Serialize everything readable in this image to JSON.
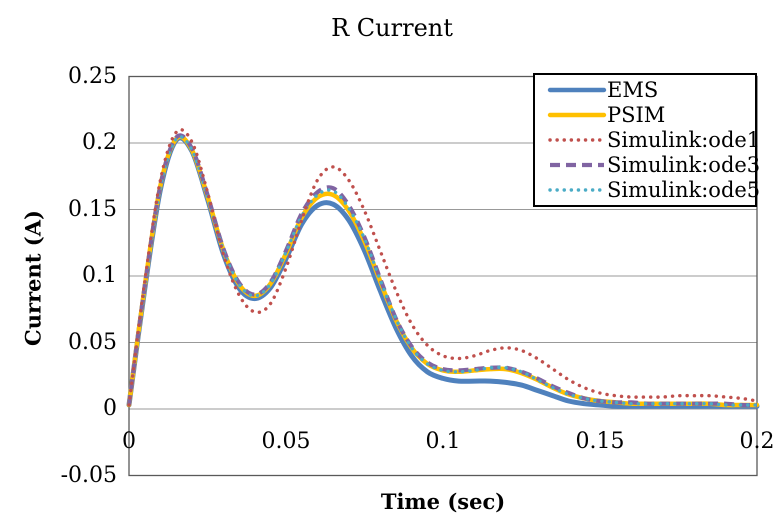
{
  "chart": {
    "title": "R Current",
    "x_axis_title": "Time (sec)",
    "y_axis_title": "Current (A)"
  },
  "colors": {
    "ems_blue": "#4F81BD",
    "psim_yellow": "#FFC000",
    "ode1_red": "#C0504D",
    "ode3_purple": "#8064A2",
    "ode5_cyan": "#4BACC6",
    "gridline": "#999999",
    "plot_border": "#595959",
    "legend_border": "#000000",
    "text": "#000000"
  },
  "chart_data": {
    "type": "line",
    "title": "R Current",
    "xlabel": "Time (sec)",
    "ylabel": "Current (A)",
    "xlim": [
      0,
      0.2
    ],
    "ylim": [
      -0.05,
      0.25
    ],
    "xticks": [
      "0",
      "0.05",
      "0.1",
      "0.15",
      "0.2"
    ],
    "xtick_values": [
      0,
      0.05,
      0.1,
      0.15,
      0.2
    ],
    "yticks": [
      "0.25",
      "0.2",
      "0.15",
      "0.1",
      "0.05",
      "0",
      "-0.05"
    ],
    "ytick_values": [
      0.25,
      0.2,
      0.15,
      0.1,
      0.05,
      0,
      -0.05
    ],
    "grid": true,
    "legend_position": "top-right",
    "x": [
      0,
      0.005,
      0.01,
      0.015,
      0.02,
      0.025,
      0.03,
      0.035,
      0.04,
      0.045,
      0.05,
      0.055,
      0.06,
      0.065,
      0.07,
      0.075,
      0.08,
      0.085,
      0.09,
      0.095,
      0.1,
      0.105,
      0.11,
      0.115,
      0.12,
      0.125,
      0.13,
      0.135,
      0.14,
      0.145,
      0.15,
      0.155,
      0.16,
      0.165,
      0.17,
      0.175,
      0.18,
      0.185,
      0.19,
      0.195,
      0.2
    ],
    "series": [
      {
        "name": "EMS",
        "color": "#4F81BD",
        "style": "solid",
        "width": 5,
        "values": [
          0.003,
          0.09,
          0.165,
          0.202,
          0.194,
          0.158,
          0.117,
          0.091,
          0.083,
          0.091,
          0.113,
          0.139,
          0.153,
          0.154,
          0.142,
          0.119,
          0.089,
          0.061,
          0.04,
          0.028,
          0.023,
          0.021,
          0.021,
          0.021,
          0.02,
          0.018,
          0.014,
          0.01,
          0.006,
          0.004,
          0.003,
          0.002,
          0.002,
          0.002,
          0.002,
          0.002,
          0.002,
          0.002,
          0.002,
          0.002,
          0.002
        ]
      },
      {
        "name": "PSIM",
        "color": "#FFC000",
        "style": "solid",
        "width": 4.5,
        "values": [
          0.003,
          0.092,
          0.168,
          0.203,
          0.195,
          0.16,
          0.12,
          0.094,
          0.085,
          0.094,
          0.117,
          0.144,
          0.159,
          0.161,
          0.149,
          0.126,
          0.096,
          0.067,
          0.046,
          0.034,
          0.029,
          0.028,
          0.029,
          0.03,
          0.03,
          0.027,
          0.022,
          0.016,
          0.011,
          0.008,
          0.006,
          0.005,
          0.004,
          0.004,
          0.004,
          0.004,
          0.004,
          0.004,
          0.003,
          0.003,
          0.003
        ]
      },
      {
        "name": "Simulink:ode1",
        "color": "#C0504D",
        "style": "dotted",
        "width": 3.4,
        "values": [
          0.003,
          0.095,
          0.172,
          0.208,
          0.201,
          0.163,
          0.117,
          0.086,
          0.073,
          0.079,
          0.106,
          0.142,
          0.172,
          0.182,
          0.172,
          0.149,
          0.119,
          0.089,
          0.064,
          0.048,
          0.04,
          0.038,
          0.04,
          0.044,
          0.046,
          0.044,
          0.038,
          0.03,
          0.022,
          0.016,
          0.012,
          0.01,
          0.009,
          0.009,
          0.009,
          0.01,
          0.01,
          0.01,
          0.009,
          0.008,
          0.006
        ]
      },
      {
        "name": "Simulink:ode3",
        "color": "#8064A2",
        "style": "dashed",
        "width": 4.2,
        "values": [
          0.003,
          0.092,
          0.168,
          0.204,
          0.196,
          0.161,
          0.121,
          0.095,
          0.086,
          0.095,
          0.119,
          0.147,
          0.163,
          0.166,
          0.153,
          0.129,
          0.098,
          0.068,
          0.047,
          0.035,
          0.03,
          0.029,
          0.03,
          0.031,
          0.031,
          0.028,
          0.023,
          0.017,
          0.012,
          0.008,
          0.006,
          0.005,
          0.005,
          0.004,
          0.004,
          0.004,
          0.004,
          0.004,
          0.004,
          0.003,
          0.003
        ]
      },
      {
        "name": "Simulink:ode5",
        "color": "#4BACC6",
        "style": "dotted",
        "width": 3.4,
        "values": [
          0.003,
          0.091,
          0.167,
          0.203,
          0.195,
          0.16,
          0.12,
          0.094,
          0.085,
          0.094,
          0.118,
          0.145,
          0.161,
          0.164,
          0.151,
          0.128,
          0.097,
          0.068,
          0.046,
          0.034,
          0.029,
          0.028,
          0.029,
          0.031,
          0.031,
          0.028,
          0.022,
          0.016,
          0.011,
          0.008,
          0.006,
          0.005,
          0.004,
          0.004,
          0.004,
          0.004,
          0.004,
          0.004,
          0.003,
          0.003,
          0.003
        ]
      }
    ],
    "draw_order": [
      0,
      1,
      3,
      4,
      2
    ],
    "legend_entries": [
      "EMS",
      "PSIM",
      "Simulink:ode1",
      "Simulink:ode3",
      "Simulink:ode5"
    ]
  }
}
